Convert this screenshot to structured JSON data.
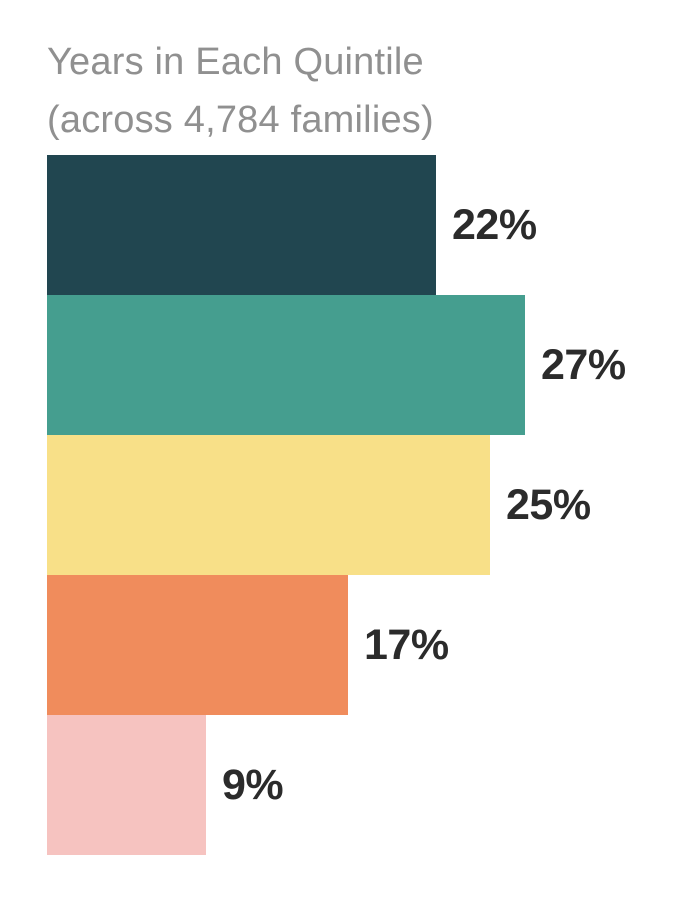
{
  "page": {
    "background": "#ffffff"
  },
  "chart_data": {
    "type": "bar",
    "orientation": "horizontal",
    "title": "Years in Each Quintile",
    "subtitle": "(across 4,784 families)",
    "values": [
      22,
      27,
      25,
      17,
      9
    ],
    "labels": [
      "22%",
      "27%",
      "25%",
      "17%",
      "9%"
    ],
    "colors": [
      "#214650",
      "#459E8F",
      "#F8E088",
      "#F08C5C",
      "#F6C3C0"
    ],
    "value_unit": "%",
    "xlim": [
      0,
      27
    ],
    "axes_visible": false,
    "grid": false,
    "legend": false,
    "data_labels_position": "right-of-bar",
    "title_color": "#909090",
    "label_color": "#2B2B2B"
  }
}
